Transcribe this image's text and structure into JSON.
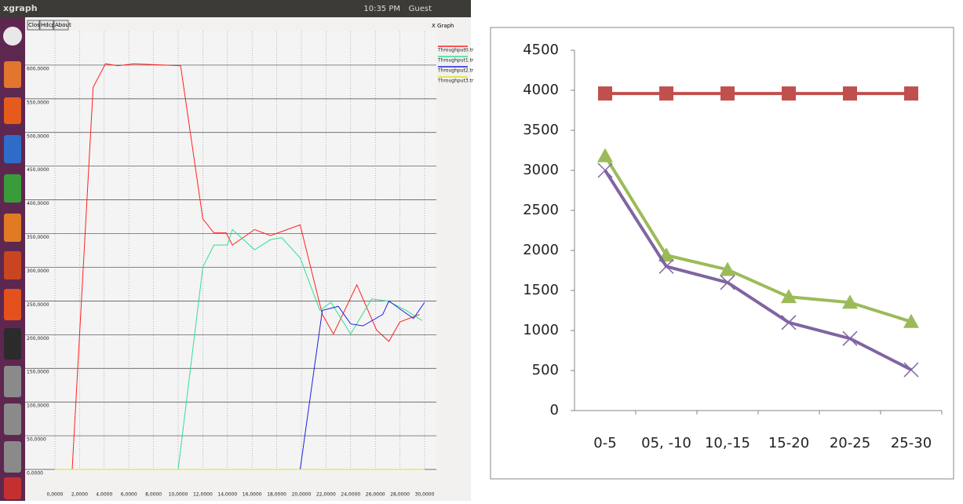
{
  "window": {
    "app_title": "xgraph",
    "clock": "10:35 PM",
    "user": "Guest",
    "buttons": [
      "Close",
      "Hdcpy",
      "About"
    ],
    "graph_title": "X Graph"
  },
  "chart_data": [
    {
      "type": "line",
      "xlim": [
        0,
        30000
      ],
      "ylim": [
        0,
        650
      ],
      "xticks": [
        {
          "value": 0,
          "label": "0,0000"
        },
        {
          "value": 2000,
          "label": "2,0000"
        },
        {
          "value": 4000,
          "label": "4,0000"
        },
        {
          "value": 6000,
          "label": "6,0000"
        },
        {
          "value": 8000,
          "label": "8,0000"
        },
        {
          "value": 10000,
          "label": "10,0000"
        },
        {
          "value": 12000,
          "label": "12,0000"
        },
        {
          "value": 14000,
          "label": "14,0000"
        },
        {
          "value": 16000,
          "label": "16,0000"
        },
        {
          "value": 18000,
          "label": "18,0000"
        },
        {
          "value": 20000,
          "label": "20,0000"
        },
        {
          "value": 22000,
          "label": "22,0000"
        },
        {
          "value": 24000,
          "label": "24,0000"
        },
        {
          "value": 26000,
          "label": "26,0000"
        },
        {
          "value": 28000,
          "label": "28,0000"
        },
        {
          "value": 30000,
          "label": "30,0000"
        }
      ],
      "yticks": [
        {
          "value": 0,
          "label": "0,0000"
        },
        {
          "value": 50,
          "label": "50,0000"
        },
        {
          "value": 100,
          "label": "100,0000"
        },
        {
          "value": 150,
          "label": "150,0000"
        },
        {
          "value": 200,
          "label": "200,0000"
        },
        {
          "value": 250,
          "label": "250,0000"
        },
        {
          "value": 300,
          "label": "300,0000"
        },
        {
          "value": 350,
          "label": "350,0000"
        },
        {
          "value": 400,
          "label": "400,0000"
        },
        {
          "value": 450,
          "label": "450,0000"
        },
        {
          "value": 500,
          "label": "500,0000"
        },
        {
          "value": 550,
          "label": "550,0000"
        },
        {
          "value": 600,
          "label": "600,0000"
        }
      ],
      "grid": true,
      "series": [
        {
          "name": "Throughput0.tr",
          "color": "#ff2020",
          "x": [
            1400,
            3100,
            4100,
            5100,
            6400,
            10200,
            12000,
            12900,
            13900,
            14400,
            16200,
            17500,
            19900,
            21700,
            22600,
            24500,
            26100,
            27100,
            28000,
            29600
          ],
          "values": [
            0,
            567,
            602,
            599,
            602,
            599,
            372,
            351,
            351,
            333,
            356,
            347,
            363,
            230,
            201,
            274,
            207,
            190,
            219,
            230
          ]
        },
        {
          "name": "Throughput1.tr",
          "color": "#30e090",
          "x": [
            10000,
            12000,
            12900,
            14000,
            14400,
            16200,
            17500,
            18400,
            19900,
            21500,
            22400,
            24000,
            25700,
            27000,
            28500,
            29800
          ],
          "values": [
            0,
            300,
            333,
            333,
            356,
            326,
            341,
            344,
            314,
            236,
            248,
            201,
            253,
            250,
            236,
            221
          ]
        },
        {
          "name": "Throughput2.tr",
          "color": "#2020e0",
          "x": [
            19900,
            21700,
            23000,
            24000,
            25000,
            26600,
            27100,
            28400,
            29100,
            30000
          ],
          "values": [
            0,
            236,
            242,
            216,
            213,
            230,
            250,
            233,
            224,
            248
          ]
        },
        {
          "name": "Throughput3.tr",
          "color": "#e0e020",
          "x": [
            0,
            30000
          ],
          "values": [
            0,
            0
          ]
        }
      ]
    },
    {
      "type": "line",
      "categories": [
        "0-5",
        "05, -10",
        "10,-15",
        "15-20",
        "20-25",
        "25-30"
      ],
      "ylim": [
        0,
        4500
      ],
      "yticks": [
        0,
        500,
        1000,
        1500,
        2000,
        2500,
        3000,
        3500,
        4000,
        4500
      ],
      "grid": false,
      "series": [
        {
          "color": "#c0504d",
          "marker": "square",
          "values": [
            3960,
            3960,
            3960,
            3960,
            3960,
            3960
          ]
        },
        {
          "color": "#9bbb59",
          "marker": "triangle",
          "values": [
            3180,
            1940,
            1760,
            1420,
            1350,
            1110
          ]
        },
        {
          "color": "#8064a2",
          "marker": "x",
          "values": [
            3000,
            1800,
            1600,
            1100,
            900,
            510
          ]
        }
      ]
    }
  ]
}
